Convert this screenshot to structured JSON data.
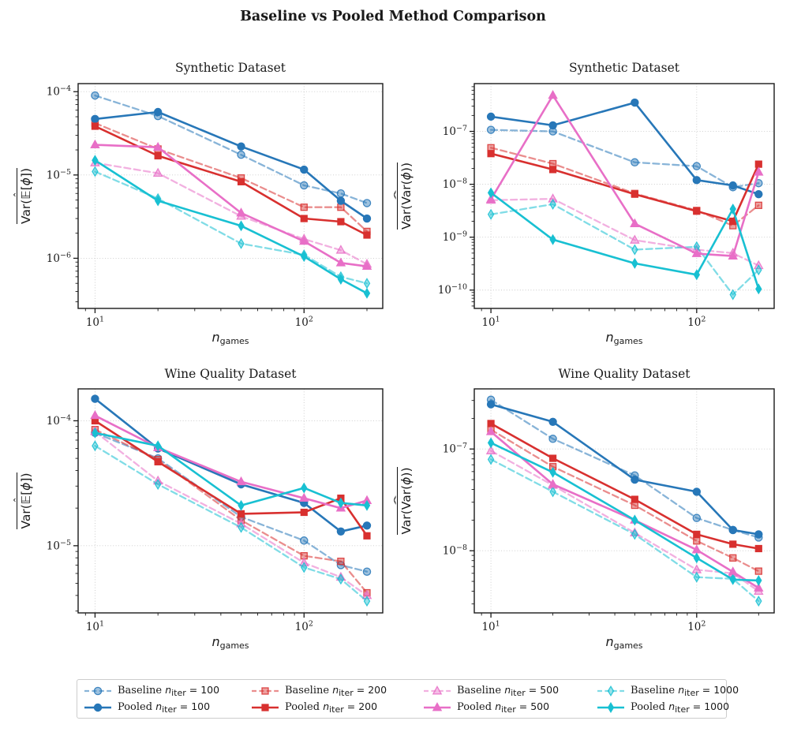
{
  "title": "Baseline vs Pooled Method Comparison",
  "legend": {
    "items": [
      {
        "key": "baseline-100",
        "method": "Baseline",
        "var": "n",
        "sub": "iter",
        "eq": "=",
        "value": "100",
        "color": "#2777b8",
        "marker": "circle",
        "dashed": true
      },
      {
        "key": "baseline-200",
        "method": "Baseline",
        "var": "n",
        "sub": "iter",
        "eq": "=",
        "value": "200",
        "color": "#d8302f",
        "marker": "square",
        "dashed": true
      },
      {
        "key": "baseline-500",
        "method": "Baseline",
        "var": "n",
        "sub": "iter",
        "eq": "=",
        "value": "500",
        "color": "#e86fc7",
        "marker": "triangle",
        "dashed": true
      },
      {
        "key": "baseline-1000",
        "method": "Baseline",
        "var": "n",
        "sub": "iter",
        "eq": "=",
        "value": "1000",
        "color": "#18c0d2",
        "marker": "diamond",
        "dashed": true
      },
      {
        "key": "pooled-100",
        "method": "Pooled",
        "var": "n",
        "sub": "iter",
        "eq": "=",
        "value": "100",
        "color": "#2777b8",
        "marker": "circle",
        "dashed": false
      },
      {
        "key": "pooled-200",
        "method": "Pooled",
        "var": "n",
        "sub": "iter",
        "eq": "=",
        "value": "200",
        "color": "#d8302f",
        "marker": "square",
        "dashed": false
      },
      {
        "key": "pooled-500",
        "method": "Pooled",
        "var": "n",
        "sub": "iter",
        "eq": "=",
        "value": "500",
        "color": "#e86fc7",
        "marker": "triangle",
        "dashed": false
      },
      {
        "key": "pooled-1000",
        "method": "Pooled",
        "var": "n",
        "sub": "iter",
        "eq": "=",
        "value": "1000",
        "color": "#18c0d2",
        "marker": "diamond",
        "dashed": false
      }
    ]
  },
  "chart_data": [
    {
      "type": "line",
      "title": "Synthetic Dataset",
      "xscale": "log",
      "yscale": "log",
      "xlabel": {
        "main": "n",
        "sub": "games"
      },
      "ylabel": {
        "prefix": "Var(",
        "hat": "𝔼",
        "hat_wide": false,
        "open": "[",
        "phi": "ϕ",
        "close": "])"
      },
      "x": [
        10,
        20,
        50,
        100,
        150,
        200
      ],
      "xlim": [
        8.3,
        238
      ],
      "ylim": [
        2.5e-07,
        0.000125
      ],
      "x_major_exp": [
        1,
        2
      ],
      "y_major_exp": [
        -4,
        -5,
        -6
      ],
      "grid": true,
      "legend_position": "bottom",
      "series": [
        {
          "name": "Baseline n_iter = 100",
          "values": [
            9e-05,
            5.1e-05,
            1.75e-05,
            7.5e-06,
            6e-06,
            4.6e-06
          ]
        },
        {
          "name": "Baseline n_iter = 200",
          "values": [
            4.2e-05,
            2.05e-05,
            9.2e-06,
            4.1e-06,
            4.1e-06,
            2.1e-06
          ]
        },
        {
          "name": "Baseline n_iter = 500",
          "values": [
            1.4e-05,
            1.05e-05,
            3.2e-06,
            1.7e-06,
            1.25e-06,
            8.5e-07
          ]
        },
        {
          "name": "Baseline n_iter = 1000",
          "values": [
            1.1e-05,
            5.2e-06,
            1.5e-06,
            1.1e-06,
            6e-07,
            5e-07
          ]
        },
        {
          "name": "Pooled n_iter = 100",
          "values": [
            4.7e-05,
            5.7e-05,
            2.2e-05,
            1.16e-05,
            4.9e-06,
            3e-06
          ]
        },
        {
          "name": "Pooled n_iter = 200",
          "values": [
            3.85e-05,
            1.7e-05,
            8.3e-06,
            3e-06,
            2.75e-06,
            1.9e-06
          ]
        },
        {
          "name": "Pooled n_iter = 500",
          "values": [
            2.3e-05,
            2.15e-05,
            3.5e-06,
            1.6e-06,
            8.8e-07,
            8e-07
          ]
        },
        {
          "name": "Pooled n_iter = 1000",
          "values": [
            1.5e-05,
            4.9e-06,
            2.45e-06,
            1.05e-06,
            5.6e-07,
            3.8e-07
          ]
        }
      ]
    },
    {
      "type": "line",
      "title": "Synthetic Dataset",
      "xscale": "log",
      "yscale": "log",
      "xlabel": {
        "main": "n",
        "sub": "games"
      },
      "ylabel": {
        "prefix": "Var(",
        "hat": "Var",
        "hat_wide": true,
        "open": "(",
        "phi": "ϕ",
        "close": "))"
      },
      "x": [
        10,
        20,
        50,
        100,
        150,
        200
      ],
      "xlim": [
        8.3,
        238
      ],
      "ylim": [
        4.5e-11,
        8e-07
      ],
      "x_major_exp": [
        1,
        2
      ],
      "y_major_exp": [
        -7,
        -8,
        -9,
        -10
      ],
      "grid": true,
      "legend_position": "bottom",
      "series": [
        {
          "name": "Baseline n_iter = 100",
          "values": [
            1.07e-07,
            1e-07,
            2.6e-08,
            2.2e-08,
            8.8e-09,
            1.05e-08
          ]
        },
        {
          "name": "Baseline n_iter = 200",
          "values": [
            4.9e-08,
            2.45e-08,
            6.7e-09,
            3.2e-09,
            1.65e-09,
            4e-09
          ]
        },
        {
          "name": "Baseline n_iter = 500",
          "values": [
            5e-09,
            5.3e-09,
            8.8e-10,
            5.8e-10,
            5e-10,
            2.9e-10
          ]
        },
        {
          "name": "Baseline n_iter = 1000",
          "values": [
            2.7e-09,
            4.2e-09,
            5.8e-10,
            6.6e-10,
            8.2e-11,
            2.4e-10
          ]
        },
        {
          "name": "Pooled n_iter = 100",
          "values": [
            1.9e-07,
            1.3e-07,
            3.5e-07,
            1.2e-08,
            9.5e-09,
            6.5e-09
          ]
        },
        {
          "name": "Pooled n_iter = 200",
          "values": [
            3.8e-08,
            1.9e-08,
            6.5e-09,
            3.1e-09,
            2e-09,
            2.4e-08
          ]
        },
        {
          "name": "Pooled n_iter = 500",
          "values": [
            5.2e-09,
            4.8e-07,
            1.8e-09,
            4.9e-10,
            4.4e-10,
            1.7e-08
          ]
        },
        {
          "name": "Pooled n_iter = 1000",
          "values": [
            6.9e-09,
            9e-10,
            3.2e-10,
            1.95e-10,
            3.4e-09,
            1.05e-10
          ]
        }
      ]
    },
    {
      "type": "line",
      "title": "Wine Quality Dataset",
      "xscale": "log",
      "yscale": "log",
      "xlabel": {
        "main": "n",
        "sub": "games"
      },
      "ylabel": {
        "prefix": "Var(",
        "hat": "𝔼",
        "hat_wide": false,
        "open": "[",
        "phi": "ϕ",
        "close": "])"
      },
      "x": [
        10,
        20,
        50,
        100,
        150,
        200
      ],
      "xlim": [
        8.3,
        238
      ],
      "ylim": [
        2.9e-06,
        0.00018
      ],
      "x_major_exp": [
        1,
        2
      ],
      "y_major_exp": [
        -4,
        -5
      ],
      "grid": true,
      "legend_position": "bottom",
      "series": [
        {
          "name": "Baseline n_iter = 100",
          "values": [
            8e-05,
            5e-05,
            1.7e-05,
            1.1e-05,
            7e-06,
            6.2e-06
          ]
        },
        {
          "name": "Baseline n_iter = 200",
          "values": [
            8.5e-05,
            4.9e-05,
            1.6e-05,
            8.3e-06,
            7.5e-06,
            4.2e-06
          ]
        },
        {
          "name": "Baseline n_iter = 500",
          "values": [
            8.2e-05,
            3.3e-05,
            1.5e-05,
            7.3e-06,
            5.6e-06,
            4e-06
          ]
        },
        {
          "name": "Baseline n_iter = 1000",
          "values": [
            6.3e-05,
            3.1e-05,
            1.4e-05,
            6.7e-06,
            5.4e-06,
            3.6e-06
          ]
        },
        {
          "name": "Pooled n_iter = 100",
          "values": [
            0.00015,
            6e-05,
            3.1e-05,
            2.2e-05,
            1.3e-05,
            1.45e-05
          ]
        },
        {
          "name": "Pooled n_iter = 200",
          "values": [
            0.0001,
            4.7e-05,
            1.8e-05,
            1.85e-05,
            2.4e-05,
            1.2e-05
          ]
        },
        {
          "name": "Pooled n_iter = 500",
          "values": [
            0.00011,
            6.1e-05,
            3.25e-05,
            2.4e-05,
            2e-05,
            2.3e-05
          ]
        },
        {
          "name": "Pooled n_iter = 1000",
          "values": [
            8e-05,
            6.3e-05,
            2.1e-05,
            2.9e-05,
            2.2e-05,
            2.1e-05
          ]
        }
      ]
    },
    {
      "type": "line",
      "title": "Wine Quality Dataset",
      "xscale": "log",
      "yscale": "log",
      "xlabel": {
        "main": "n",
        "sub": "games"
      },
      "ylabel": {
        "prefix": "Var(",
        "hat": "Var",
        "hat_wide": true,
        "open": "(",
        "phi": "ϕ",
        "close": "))"
      },
      "x": [
        10,
        20,
        50,
        100,
        150,
        200
      ],
      "xlim": [
        8.3,
        238
      ],
      "ylim": [
        2.45e-09,
        3.9e-07
      ],
      "x_major_exp": [
        1,
        2
      ],
      "y_major_exp": [
        -7,
        -8
      ],
      "grid": true,
      "legend_position": "bottom",
      "series": [
        {
          "name": "Baseline n_iter = 100",
          "values": [
            3.05e-07,
            1.26e-07,
            5.5e-08,
            2.1e-08,
            1.6e-08,
            1.35e-08
          ]
        },
        {
          "name": "Baseline n_iter = 200",
          "values": [
            1.55e-07,
            6.7e-08,
            2.8e-08,
            1.25e-08,
            8.5e-09,
            6.3e-09
          ]
        },
        {
          "name": "Baseline n_iter = 500",
          "values": [
            9.6e-08,
            4.4e-08,
            1.5e-08,
            6.5e-09,
            6e-09,
            4e-09
          ]
        },
        {
          "name": "Baseline n_iter = 1000",
          "values": [
            7.9e-08,
            3.8e-08,
            1.45e-08,
            5.5e-09,
            5.3e-09,
            3.2e-09
          ]
        },
        {
          "name": "Pooled n_iter = 100",
          "values": [
            2.75e-07,
            1.85e-07,
            5e-08,
            3.8e-08,
            1.6e-08,
            1.45e-08
          ]
        },
        {
          "name": "Pooled n_iter = 200",
          "values": [
            1.78e-07,
            8.1e-08,
            3.2e-08,
            1.45e-08,
            1.16e-08,
            1.05e-08
          ]
        },
        {
          "name": "Pooled n_iter = 500",
          "values": [
            1.48e-07,
            4.5e-08,
            2e-08,
            1.02e-08,
            6.2e-09,
            4.3e-09
          ]
        },
        {
          "name": "Pooled n_iter = 1000",
          "values": [
            1.15e-07,
            5.9e-08,
            2e-08,
            8.5e-09,
            5.2e-09,
            5.1e-09
          ]
        }
      ]
    }
  ]
}
